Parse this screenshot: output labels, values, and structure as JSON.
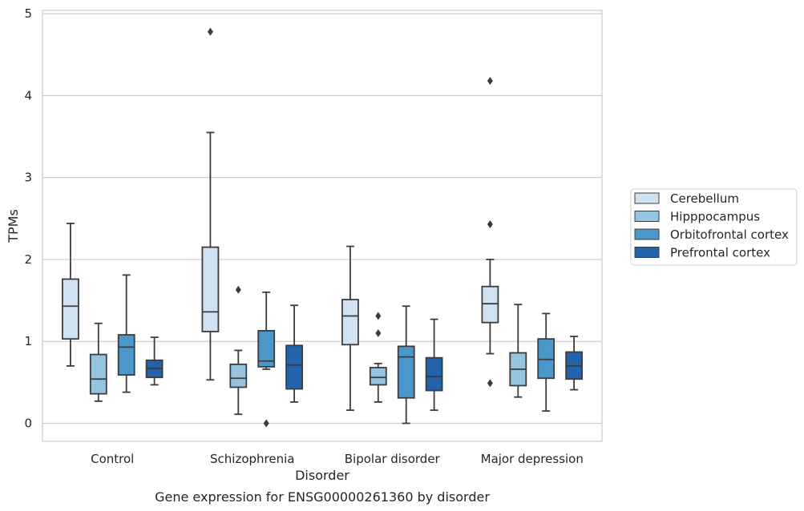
{
  "chart_data": {
    "type": "box",
    "title": "Gene expression for ENSG00000261360 by disorder",
    "xlabel": "Disorder",
    "ylabel": "TPMs",
    "ylim": [
      -0.22,
      5.04
    ],
    "yticks": [
      0,
      1,
      2,
      3,
      4,
      5
    ],
    "grid": true,
    "legend_position": "right",
    "categories": [
      "Control",
      "Schizophrenia",
      "Bipolar disorder",
      "Major depression"
    ],
    "series": [
      {
        "name": "Cerebellum",
        "color": "#d0e1f2",
        "boxes": [
          {
            "whislo": 0.7,
            "q1": 1.03,
            "med": 1.43,
            "q3": 1.76,
            "whishi": 2.44,
            "fliers": []
          },
          {
            "whislo": 0.53,
            "q1": 1.12,
            "med": 1.36,
            "q3": 2.15,
            "whishi": 3.55,
            "fliers": [
              4.78
            ]
          },
          {
            "whislo": 0.16,
            "q1": 0.96,
            "med": 1.31,
            "q3": 1.51,
            "whishi": 2.16,
            "fliers": []
          },
          {
            "whislo": 0.85,
            "q1": 1.23,
            "med": 1.46,
            "q3": 1.67,
            "whishi": 2.0,
            "fliers": [
              0.49,
              2.43,
              4.18
            ]
          }
        ]
      },
      {
        "name": "Hipppocampus",
        "color": "#94c4df",
        "boxes": [
          {
            "whislo": 0.27,
            "q1": 0.36,
            "med": 0.54,
            "q3": 0.84,
            "whishi": 1.22,
            "fliers": []
          },
          {
            "whislo": 0.11,
            "q1": 0.44,
            "med": 0.55,
            "q3": 0.72,
            "whishi": 0.89,
            "fliers": [
              1.63
            ]
          },
          {
            "whislo": 0.26,
            "q1": 0.47,
            "med": 0.56,
            "q3": 0.68,
            "whishi": 0.73,
            "fliers": [
              1.1,
              1.31
            ]
          },
          {
            "whislo": 0.32,
            "q1": 0.46,
            "med": 0.66,
            "q3": 0.86,
            "whishi": 1.45,
            "fliers": []
          }
        ]
      },
      {
        "name": "Orbitofrontal cortex",
        "color": "#4a98c9",
        "boxes": [
          {
            "whislo": 0.38,
            "q1": 0.59,
            "med": 0.93,
            "q3": 1.08,
            "whishi": 1.81,
            "fliers": []
          },
          {
            "whislo": 0.66,
            "q1": 0.69,
            "med": 0.76,
            "q3": 1.13,
            "whishi": 1.6,
            "fliers": [
              0.0
            ]
          },
          {
            "whislo": 0.0,
            "q1": 0.31,
            "med": 0.81,
            "q3": 0.94,
            "whishi": 1.43,
            "fliers": []
          },
          {
            "whislo": 0.15,
            "q1": 0.55,
            "med": 0.78,
            "q3": 1.03,
            "whishi": 1.34,
            "fliers": []
          }
        ]
      },
      {
        "name": "Prefrontal cortex",
        "color": "#2164ab",
        "boxes": [
          {
            "whislo": 0.47,
            "q1": 0.56,
            "med": 0.67,
            "q3": 0.77,
            "whishi": 1.05,
            "fliers": []
          },
          {
            "whislo": 0.26,
            "q1": 0.42,
            "med": 0.71,
            "q3": 0.95,
            "whishi": 1.44,
            "fliers": []
          },
          {
            "whislo": 0.16,
            "q1": 0.4,
            "med": 0.57,
            "q3": 0.8,
            "whishi": 1.27,
            "fliers": []
          },
          {
            "whislo": 0.41,
            "q1": 0.54,
            "med": 0.7,
            "q3": 0.87,
            "whishi": 1.06,
            "fliers": []
          }
        ]
      }
    ]
  }
}
